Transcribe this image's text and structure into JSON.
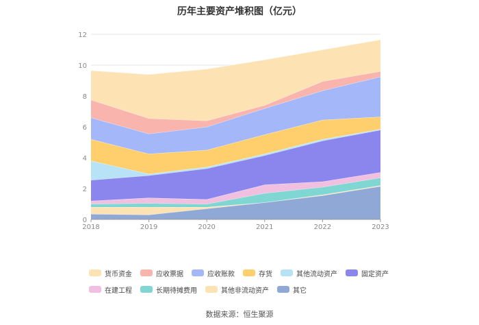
{
  "title": "历年主要资产堆积图（亿元）",
  "source": "数据来源：恒生聚源",
  "chart_data": {
    "type": "area",
    "stacked": true,
    "categories": [
      "2018",
      "2019",
      "2020",
      "2021",
      "2022",
      "2023"
    ],
    "y_ticks": [
      "0",
      "2",
      "4",
      "6",
      "8",
      "10",
      "12"
    ],
    "ylim": [
      0,
      12
    ],
    "grid": true,
    "legend_position": "bottom",
    "series": [
      {
        "name": "其它",
        "color": "#8fa8d6",
        "values": [
          0.35,
          0.3,
          0.7,
          1.1,
          1.55,
          2.15
        ]
      },
      {
        "name": "其他非流动资产",
        "color": "#fde3b3",
        "values": [
          0.45,
          0.5,
          0.1,
          0.0,
          0.05,
          0.05
        ]
      },
      {
        "name": "长期待摊费用",
        "color": "#7fd6d2",
        "values": [
          0.2,
          0.25,
          0.2,
          0.6,
          0.5,
          0.5
        ]
      },
      {
        "name": "在建工程",
        "color": "#f1bfe0",
        "values": [
          0.2,
          0.35,
          0.3,
          0.55,
          0.35,
          0.35
        ]
      },
      {
        "name": "固定资产",
        "color": "#8a86ee",
        "values": [
          1.35,
          1.45,
          2.0,
          1.9,
          2.65,
          2.75
        ]
      },
      {
        "name": "其他流动资产",
        "color": "#b8e3f7",
        "values": [
          1.25,
          0.1,
          0.1,
          0.1,
          0.1,
          0.05
        ]
      },
      {
        "name": "存货",
        "color": "#fecf6c",
        "values": [
          1.4,
          1.3,
          1.1,
          1.25,
          1.25,
          0.8
        ]
      },
      {
        "name": "应收账款",
        "color": "#a4b7f8",
        "values": [
          1.4,
          1.3,
          1.5,
          1.7,
          1.9,
          2.6
        ]
      },
      {
        "name": "应收票据",
        "color": "#f9b4ad",
        "values": [
          1.15,
          1.0,
          0.4,
          0.2,
          0.6,
          0.35
        ]
      },
      {
        "name": "货币资金",
        "color": "#fde3b3",
        "values": [
          1.9,
          2.85,
          3.35,
          2.95,
          2.05,
          2.05
        ]
      }
    ],
    "legend_order": [
      "货币资金",
      "应收票据",
      "应收账款",
      "存货",
      "其他流动资产",
      "固定资产",
      "在建工程",
      "长期待摊费用",
      "其他非流动资产",
      "其它"
    ]
  }
}
